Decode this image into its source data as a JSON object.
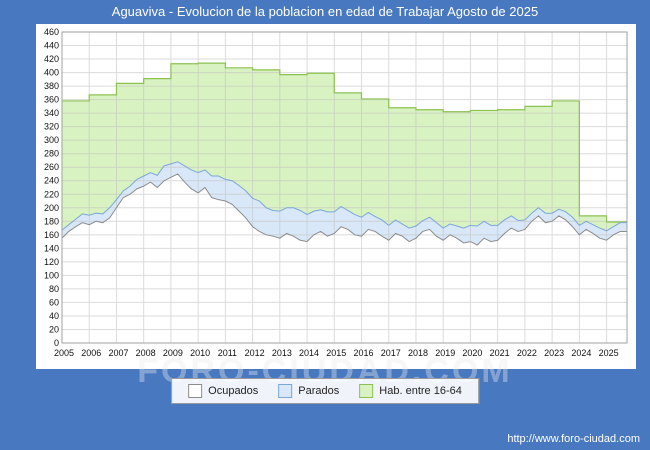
{
  "title": "Aguaviva - Evolucion de la poblacion en edad de Trabajar Agosto de 2025",
  "footer_url": "http://www.foro-ciudad.com",
  "watermark": "FORO-CIUDAD.COM",
  "legend": {
    "items": [
      {
        "label": "Ocupados",
        "fill": "#ffffff",
        "border": "#8c8c8c"
      },
      {
        "label": "Parados",
        "fill": "#d9e8f8",
        "border": "#7ba7d7"
      },
      {
        "label": "Hab. entre 16-64",
        "fill": "#d9f2c2",
        "border": "#8cc152"
      }
    ]
  },
  "chart_data": {
    "type": "area",
    "title": "Aguaviva - Evolucion de la poblacion en edad de Trabajar Agosto de 2025",
    "xlabel": "",
    "ylabel": "",
    "ylim": [
      0,
      460
    ],
    "y_step": 20,
    "x_start": 2005,
    "x_step": 0.25,
    "x_end": 2025.75,
    "x_ticks": [
      2005,
      2006,
      2007,
      2008,
      2009,
      2010,
      2011,
      2012,
      2013,
      2014,
      2015,
      2016,
      2017,
      2018,
      2019,
      2020,
      2021,
      2022,
      2023,
      2024,
      2025
    ],
    "grid": true,
    "legend_position": "bottom",
    "series": {
      "ocupados": {
        "name": "Ocupados",
        "fill": "#ffffff",
        "line": "#8c8c8c",
        "values": [
          155,
          165,
          172,
          178,
          175,
          180,
          178,
          185,
          200,
          215,
          220,
          228,
          232,
          238,
          230,
          240,
          245,
          250,
          238,
          228,
          222,
          230,
          215,
          212,
          210,
          205,
          195,
          185,
          172,
          165,
          160,
          158,
          155,
          162,
          158,
          152,
          150,
          160,
          165,
          158,
          162,
          172,
          168,
          160,
          158,
          168,
          165,
          158,
          152,
          162,
          158,
          150,
          155,
          165,
          168,
          158,
          152,
          160,
          155,
          148,
          150,
          145,
          155,
          150,
          152,
          162,
          170,
          165,
          168,
          180,
          188,
          178,
          180,
          188,
          182,
          172,
          160,
          168,
          162,
          155,
          152,
          160,
          165
        ]
      },
      "parados": {
        "name": "Parados",
        "stacked_on": "ocupados",
        "fill": "#d9e8f8",
        "line": "#7ba7d7",
        "values": [
          12,
          10,
          11,
          13,
          14,
          12,
          13,
          15,
          12,
          10,
          12,
          14,
          15,
          14,
          18,
          22,
          20,
          18,
          24,
          28,
          30,
          26,
          32,
          35,
          32,
          35,
          38,
          40,
          42,
          45,
          40,
          38,
          40,
          38,
          42,
          44,
          40,
          35,
          32,
          36,
          32,
          30,
          28,
          30,
          28,
          25,
          22,
          24,
          22,
          20,
          18,
          20,
          18,
          16,
          18,
          20,
          18,
          16,
          18,
          22,
          24,
          28,
          25,
          24,
          22,
          20,
          18,
          16,
          14,
          12,
          12,
          14,
          12,
          10,
          12,
          14,
          14,
          12,
          13,
          15,
          14,
          12,
          13
        ]
      },
      "hab": {
        "name": "Hab. entre 16-64",
        "step": "yearly",
        "fill": "#d9f2c2",
        "line": "#8cc152",
        "years": [
          2005,
          2006,
          2007,
          2008,
          2009,
          2010,
          2011,
          2012,
          2013,
          2014,
          2015,
          2016,
          2017,
          2018,
          2019,
          2020,
          2021,
          2022,
          2023,
          2024,
          2025
        ],
        "values": [
          358,
          367,
          384,
          391,
          413,
          414,
          407,
          404,
          397,
          399,
          370,
          361,
          348,
          345,
          342,
          344,
          345,
          350,
          358,
          188,
          179
        ]
      }
    }
  }
}
